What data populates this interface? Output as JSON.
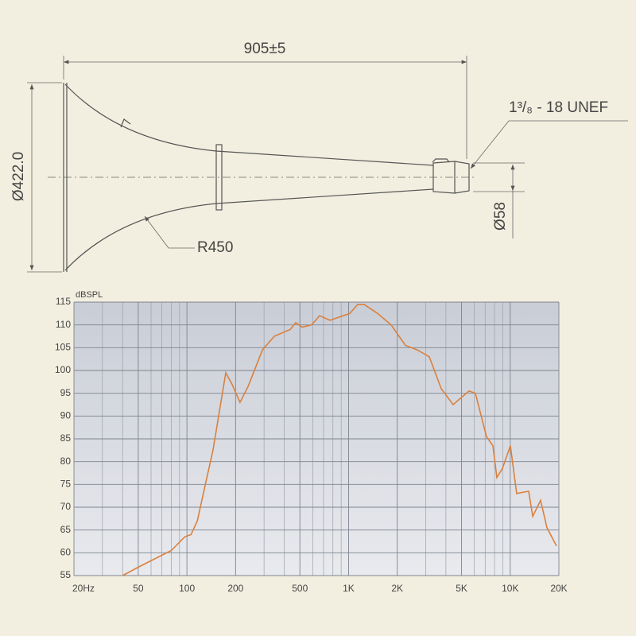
{
  "drawing": {
    "length": "905±5",
    "mouth_diameter": "Ø422.0",
    "radius": "R450",
    "throat_diameter": "Ø58",
    "thread": "1³/₈ - 18 UNEF"
  },
  "chart_data": {
    "type": "line",
    "ylabel": "dBSPL",
    "log_x": true,
    "grid": true,
    "xlim": [
      20,
      20000
    ],
    "ylim": [
      55,
      115
    ],
    "xticks": [
      {
        "value": 20,
        "label": "20Hz"
      },
      50,
      100,
      200,
      500,
      {
        "value": 1000,
        "label": "1K"
      },
      {
        "value": 2000,
        "label": "2K"
      },
      {
        "value": 5000,
        "label": "5K"
      },
      {
        "value": 10000,
        "label": "10K"
      },
      {
        "value": 20000,
        "label": "20K"
      }
    ],
    "xticks_minor": [
      30,
      40,
      60,
      70,
      80,
      90,
      300,
      400,
      600,
      700,
      800,
      900,
      3000,
      4000,
      6000,
      7000,
      8000,
      9000
    ],
    "yticks": [
      55,
      60,
      65,
      70,
      75,
      80,
      85,
      90,
      95,
      100,
      105,
      110,
      115
    ],
    "series": [
      {
        "color": "#d9813f",
        "x": [
          40,
          51,
          80,
          97,
          106,
          116,
          130,
          145,
          174,
          190,
          213,
          239,
          293,
          347,
          436,
          471,
          515,
          590,
          662,
          767,
          1018,
          1140,
          1248,
          1513,
          1833,
          2249,
          2667,
          3158,
          3742,
          4436,
          5561,
          6093,
          7131,
          7813,
          8264,
          8951,
          10025,
          10967,
          13003,
          13772,
          15418,
          16874,
          19330
        ],
        "values": [
          55,
          57,
          60.5,
          63.5,
          64,
          67,
          75,
          82.5,
          99.5,
          97,
          93,
          96.5,
          104.5,
          107.5,
          109,
          110.5,
          109.5,
          110,
          112,
          111,
          112.5,
          114.5,
          114.5,
          112.5,
          110,
          105.5,
          104.5,
          103,
          96,
          92.5,
          95.5,
          95,
          85.5,
          83.5,
          76.5,
          78.5,
          83.5,
          73,
          73.5,
          68,
          71.5,
          65.5,
          61.5
        ]
      }
    ]
  }
}
